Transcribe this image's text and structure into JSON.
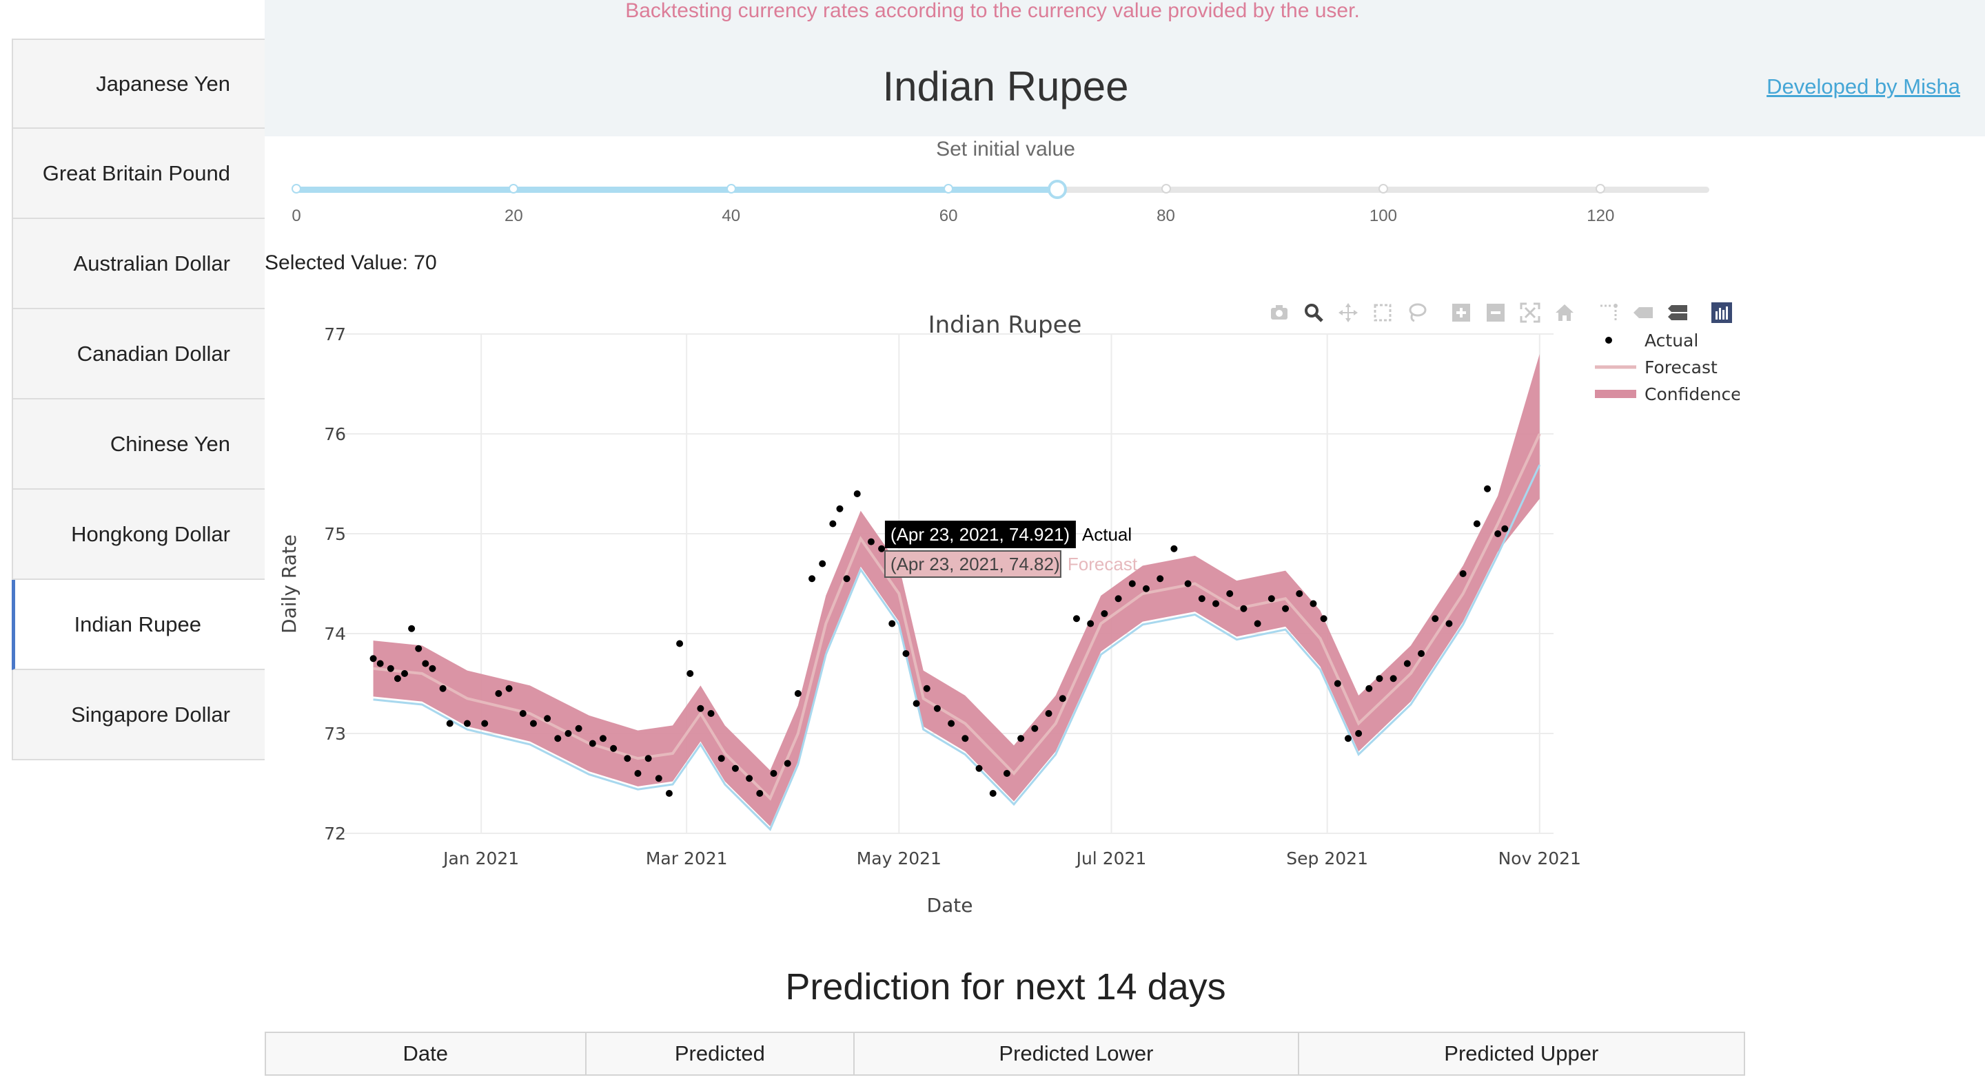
{
  "app": {
    "tagline": "Backtesting currency rates according to the currency value provided by the user.",
    "title": "Indian Rupee",
    "developer_link": "Developed by Misha"
  },
  "sidebar": {
    "items": [
      {
        "label": "Japanese Yen",
        "active": false
      },
      {
        "label": "Great Britain Pound",
        "active": false
      },
      {
        "label": "Australian Dollar",
        "active": false
      },
      {
        "label": "Canadian Dollar",
        "active": false
      },
      {
        "label": "Chinese Yen",
        "active": false
      },
      {
        "label": "Hongkong Dollar",
        "active": false
      },
      {
        "label": "Indian Rupee",
        "active": true
      },
      {
        "label": "Singapore Dollar",
        "active": false
      }
    ]
  },
  "slider": {
    "label": "Set initial value",
    "min": 0,
    "max": 130,
    "value": 70,
    "marks": [
      "0",
      "20",
      "40",
      "60",
      "80",
      "100",
      "120"
    ],
    "selected_text": "Selected Value: 70"
  },
  "modebar": {
    "icons": [
      "camera-icon",
      "zoom-icon",
      "pan-icon",
      "box-select-icon",
      "lasso-icon",
      "zoom-in-icon",
      "zoom-out-icon",
      "autoscale-icon",
      "reset-axes-icon",
      "spike-lines-icon",
      "hover-closest-icon",
      "hover-compare-icon",
      "plotly-logo-icon"
    ]
  },
  "chart_data": {
    "type": "line",
    "title": "Indian Rupee",
    "xlabel": "Date",
    "ylabel": "Daily Rate",
    "ylim": [
      72,
      77
    ],
    "xlim": [
      "2020-11-20",
      "2021-11-05"
    ],
    "x_ticks": [
      {
        "date": "2021-01-01",
        "label": "Jan 2021"
      },
      {
        "date": "2021-03-01",
        "label": "Mar 2021"
      },
      {
        "date": "2021-05-01",
        "label": "May 2021"
      },
      {
        "date": "2021-07-01",
        "label": "Jul 2021"
      },
      {
        "date": "2021-09-01",
        "label": "Sep 2021"
      },
      {
        "date": "2021-11-01",
        "label": "Nov 2021"
      }
    ],
    "y_ticks": [
      "72",
      "73",
      "74",
      "75",
      "76",
      "77"
    ],
    "grid": true,
    "legend_position": "top-right",
    "series": [
      {
        "name": "Actual",
        "kind": "markers",
        "color": "#000000"
      },
      {
        "name": "Forecast",
        "kind": "line",
        "color": "#e6b9bd"
      },
      {
        "name": "Confidence",
        "kind": "band",
        "color": "#d88ea0"
      }
    ],
    "forecast": [
      [
        "2020-12-01",
        73.65
      ],
      [
        "2020-12-15",
        73.6
      ],
      [
        "2020-12-28",
        73.35
      ],
      [
        "2021-01-15",
        73.2
      ],
      [
        "2021-02-01",
        72.9
      ],
      [
        "2021-02-15",
        72.75
      ],
      [
        "2021-02-25",
        72.8
      ],
      [
        "2021-03-05",
        73.2
      ],
      [
        "2021-03-12",
        72.8
      ],
      [
        "2021-03-25",
        72.35
      ],
      [
        "2021-04-02",
        73.0
      ],
      [
        "2021-04-10",
        74.1
      ],
      [
        "2021-04-20",
        74.95
      ],
      [
        "2021-05-01",
        74.4
      ],
      [
        "2021-05-08",
        73.35
      ],
      [
        "2021-05-20",
        73.1
      ],
      [
        "2021-06-03",
        72.6
      ],
      [
        "2021-06-15",
        73.1
      ],
      [
        "2021-06-28",
        74.1
      ],
      [
        "2021-07-10",
        74.4
      ],
      [
        "2021-07-25",
        74.5
      ],
      [
        "2021-08-06",
        74.25
      ],
      [
        "2021-08-20",
        74.35
      ],
      [
        "2021-08-30",
        73.95
      ],
      [
        "2021-09-10",
        73.1
      ],
      [
        "2021-09-25",
        73.6
      ],
      [
        "2021-10-10",
        74.4
      ],
      [
        "2021-10-20",
        75.1
      ],
      [
        "2021-11-01",
        76.0
      ]
    ],
    "band_half_width": 0.28,
    "actual": [
      [
        "2020-12-01",
        73.75
      ],
      [
        "2020-12-03",
        73.7
      ],
      [
        "2020-12-06",
        73.65
      ],
      [
        "2020-12-08",
        73.55
      ],
      [
        "2020-12-10",
        73.6
      ],
      [
        "2020-12-12",
        74.05
      ],
      [
        "2020-12-14",
        73.85
      ],
      [
        "2020-12-16",
        73.7
      ],
      [
        "2020-12-18",
        73.65
      ],
      [
        "2020-12-21",
        73.45
      ],
      [
        "2020-12-23",
        73.1
      ],
      [
        "2020-12-28",
        73.1
      ],
      [
        "2021-01-02",
        73.1
      ],
      [
        "2021-01-06",
        73.4
      ],
      [
        "2021-01-09",
        73.45
      ],
      [
        "2021-01-13",
        73.2
      ],
      [
        "2021-01-16",
        73.1
      ],
      [
        "2021-01-20",
        73.15
      ],
      [
        "2021-01-23",
        72.95
      ],
      [
        "2021-01-26",
        73.0
      ],
      [
        "2021-01-29",
        73.05
      ],
      [
        "2021-02-02",
        72.9
      ],
      [
        "2021-02-05",
        72.95
      ],
      [
        "2021-02-08",
        72.85
      ],
      [
        "2021-02-12",
        72.75
      ],
      [
        "2021-02-15",
        72.6
      ],
      [
        "2021-02-18",
        72.75
      ],
      [
        "2021-02-21",
        72.55
      ],
      [
        "2021-02-24",
        72.4
      ],
      [
        "2021-02-27",
        73.9
      ],
      [
        "2021-03-02",
        73.6
      ],
      [
        "2021-03-05",
        73.25
      ],
      [
        "2021-03-08",
        73.2
      ],
      [
        "2021-03-11",
        72.75
      ],
      [
        "2021-03-15",
        72.65
      ],
      [
        "2021-03-19",
        72.55
      ],
      [
        "2021-03-22",
        72.4
      ],
      [
        "2021-03-26",
        72.6
      ],
      [
        "2021-03-30",
        72.7
      ],
      [
        "2021-04-02",
        73.4
      ],
      [
        "2021-04-06",
        74.55
      ],
      [
        "2021-04-09",
        74.7
      ],
      [
        "2021-04-12",
        75.1
      ],
      [
        "2021-04-14",
        75.25
      ],
      [
        "2021-04-16",
        74.55
      ],
      [
        "2021-04-19",
        75.4
      ],
      [
        "2021-04-23",
        74.92
      ],
      [
        "2021-04-26",
        74.85
      ],
      [
        "2021-04-29",
        74.1
      ],
      [
        "2021-05-03",
        73.8
      ],
      [
        "2021-05-06",
        73.3
      ],
      [
        "2021-05-09",
        73.45
      ],
      [
        "2021-05-12",
        73.25
      ],
      [
        "2021-05-16",
        73.1
      ],
      [
        "2021-05-20",
        72.95
      ],
      [
        "2021-05-24",
        72.65
      ],
      [
        "2021-05-28",
        72.4
      ],
      [
        "2021-06-01",
        72.6
      ],
      [
        "2021-06-05",
        72.95
      ],
      [
        "2021-06-09",
        73.05
      ],
      [
        "2021-06-13",
        73.2
      ],
      [
        "2021-06-17",
        73.35
      ],
      [
        "2021-06-21",
        74.15
      ],
      [
        "2021-06-25",
        74.1
      ],
      [
        "2021-06-29",
        74.2
      ],
      [
        "2021-07-03",
        74.35
      ],
      [
        "2021-07-07",
        74.5
      ],
      [
        "2021-07-11",
        74.45
      ],
      [
        "2021-07-15",
        74.55
      ],
      [
        "2021-07-19",
        74.85
      ],
      [
        "2021-07-23",
        74.5
      ],
      [
        "2021-07-27",
        74.35
      ],
      [
        "2021-07-31",
        74.3
      ],
      [
        "2021-08-04",
        74.4
      ],
      [
        "2021-08-08",
        74.25
      ],
      [
        "2021-08-12",
        74.1
      ],
      [
        "2021-08-16",
        74.35
      ],
      [
        "2021-08-20",
        74.25
      ],
      [
        "2021-08-24",
        74.4
      ],
      [
        "2021-08-28",
        74.3
      ],
      [
        "2021-08-31",
        74.15
      ],
      [
        "2021-09-04",
        73.5
      ],
      [
        "2021-09-07",
        72.95
      ],
      [
        "2021-09-10",
        73.0
      ],
      [
        "2021-09-13",
        73.45
      ],
      [
        "2021-09-16",
        73.55
      ],
      [
        "2021-09-20",
        73.55
      ],
      [
        "2021-09-24",
        73.7
      ],
      [
        "2021-09-28",
        73.8
      ],
      [
        "2021-10-02",
        74.15
      ],
      [
        "2021-10-06",
        74.1
      ],
      [
        "2021-10-10",
        74.6
      ],
      [
        "2021-10-14",
        75.1
      ],
      [
        "2021-10-17",
        75.45
      ],
      [
        "2021-10-20",
        75.0
      ],
      [
        "2021-10-22",
        75.05
      ]
    ],
    "tooltips": [
      {
        "text": "(Apr 23, 2021, 74.921)",
        "series": "Actual",
        "color": "#000000"
      },
      {
        "text": "(Apr 23, 2021, 74.82)",
        "series": "Forecast",
        "color": "#e6b9bd"
      }
    ]
  },
  "prediction": {
    "title": "Prediction for next 14 days",
    "columns": [
      "Date",
      "Predicted",
      "Predicted Lower",
      "Predicted Upper"
    ]
  },
  "colors": {
    "accent": "#45a6d6",
    "tagline": "#dc7d98",
    "band": "#d88ea0",
    "forecast_line": "#e6b9bd",
    "slider": "#abdcf1"
  }
}
